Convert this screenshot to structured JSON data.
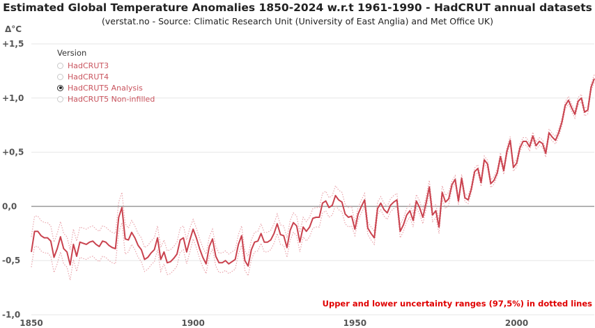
{
  "chart_data": {
    "type": "line",
    "title": "Estimated Global Temperature Anomalies 1850-2024 w.r.t 1961-1990 - HadCRUT annual datasets",
    "subtitle": "(verstat.no - Source: Climatic Research Unit (University of East Anglia) and Met Office UK)",
    "ylabel": "Δ°C",
    "xlabel": "",
    "xlim": [
      1850,
      2024
    ],
    "ylim": [
      -1.0,
      1.5
    ],
    "x_ticks": [
      {
        "value": 1850,
        "label": "1850"
      },
      {
        "value": 1900,
        "label": "1900"
      },
      {
        "value": 1950,
        "label": "1950"
      },
      {
        "value": 2000,
        "label": "2000"
      }
    ],
    "y_ticks": [
      {
        "value": 1.5,
        "label": "+1,5"
      },
      {
        "value": 1.0,
        "label": "+1,0"
      },
      {
        "value": 0.5,
        "label": "+0,5"
      },
      {
        "value": 0.0,
        "label": "0,0"
      },
      {
        "value": -0.5,
        "label": "-0,5"
      },
      {
        "value": -1.0,
        "label": "-1,0"
      }
    ],
    "grid": true,
    "line_color": "#c9424e",
    "band_color": "#e9a5ac",
    "series": [
      {
        "name": "HadCRUT5 Analysis",
        "x": [
          1850,
          1851,
          1852,
          1853,
          1854,
          1855,
          1856,
          1857,
          1858,
          1859,
          1860,
          1861,
          1862,
          1863,
          1864,
          1865,
          1866,
          1867,
          1868,
          1869,
          1870,
          1871,
          1872,
          1873,
          1874,
          1875,
          1876,
          1877,
          1878,
          1879,
          1880,
          1881,
          1882,
          1883,
          1884,
          1885,
          1886,
          1887,
          1888,
          1889,
          1890,
          1891,
          1892,
          1893,
          1894,
          1895,
          1896,
          1897,
          1898,
          1899,
          1900,
          1901,
          1902,
          1903,
          1904,
          1905,
          1906,
          1907,
          1908,
          1909,
          1910,
          1911,
          1912,
          1913,
          1914,
          1915,
          1916,
          1917,
          1918,
          1919,
          1920,
          1921,
          1922,
          1923,
          1924,
          1925,
          1926,
          1927,
          1928,
          1929,
          1930,
          1931,
          1932,
          1933,
          1934,
          1935,
          1936,
          1937,
          1938,
          1939,
          1940,
          1941,
          1942,
          1943,
          1944,
          1945,
          1946,
          1947,
          1948,
          1949,
          1950,
          1951,
          1952,
          1953,
          1954,
          1955,
          1956,
          1957,
          1958,
          1959,
          1960,
          1961,
          1962,
          1963,
          1964,
          1965,
          1966,
          1967,
          1968,
          1969,
          1970,
          1971,
          1972,
          1973,
          1974,
          1975,
          1976,
          1977,
          1978,
          1979,
          1980,
          1981,
          1982,
          1983,
          1984,
          1985,
          1986,
          1987,
          1988,
          1989,
          1990,
          1991,
          1992,
          1993,
          1994,
          1995,
          1996,
          1997,
          1998,
          1999,
          2000,
          2001,
          2002,
          2003,
          2004,
          2005,
          2006,
          2007,
          2008,
          2009,
          2010,
          2011,
          2012,
          2013,
          2014,
          2015,
          2016,
          2017,
          2018,
          2019,
          2020,
          2021,
          2022,
          2023,
          2024
        ],
        "values": [
          -0.42,
          -0.23,
          -0.23,
          -0.27,
          -0.29,
          -0.29,
          -0.32,
          -0.47,
          -0.39,
          -0.28,
          -0.39,
          -0.42,
          -0.54,
          -0.35,
          -0.46,
          -0.33,
          -0.34,
          -0.35,
          -0.33,
          -0.32,
          -0.35,
          -0.37,
          -0.32,
          -0.33,
          -0.36,
          -0.38,
          -0.39,
          -0.1,
          -0.01,
          -0.3,
          -0.31,
          -0.24,
          -0.29,
          -0.36,
          -0.4,
          -0.49,
          -0.47,
          -0.43,
          -0.4,
          -0.29,
          -0.49,
          -0.42,
          -0.52,
          -0.51,
          -0.48,
          -0.44,
          -0.31,
          -0.29,
          -0.42,
          -0.31,
          -0.21,
          -0.29,
          -0.39,
          -0.47,
          -0.53,
          -0.37,
          -0.3,
          -0.46,
          -0.52,
          -0.52,
          -0.5,
          -0.53,
          -0.51,
          -0.49,
          -0.35,
          -0.27,
          -0.5,
          -0.55,
          -0.4,
          -0.33,
          -0.32,
          -0.25,
          -0.33,
          -0.33,
          -0.31,
          -0.25,
          -0.16,
          -0.26,
          -0.27,
          -0.38,
          -0.22,
          -0.15,
          -0.18,
          -0.33,
          -0.19,
          -0.23,
          -0.19,
          -0.11,
          -0.1,
          -0.1,
          0.03,
          0.05,
          -0.01,
          0.01,
          0.1,
          0.06,
          0.04,
          -0.07,
          -0.1,
          -0.09,
          -0.21,
          -0.07,
          0.0,
          0.06,
          -0.2,
          -0.25,
          -0.29,
          -0.02,
          0.03,
          -0.03,
          -0.06,
          0.01,
          0.04,
          0.06,
          -0.23,
          -0.17,
          -0.08,
          -0.04,
          -0.13,
          0.05,
          -0.01,
          -0.1,
          0.03,
          0.18,
          -0.08,
          -0.04,
          -0.19,
          0.13,
          0.04,
          0.07,
          0.2,
          0.25,
          0.05,
          0.26,
          0.08,
          0.06,
          0.16,
          0.32,
          0.35,
          0.22,
          0.43,
          0.39,
          0.21,
          0.24,
          0.31,
          0.46,
          0.33,
          0.51,
          0.61,
          0.36,
          0.4,
          0.54,
          0.6,
          0.6,
          0.55,
          0.65,
          0.56,
          0.6,
          0.58,
          0.49,
          0.68,
          0.64,
          0.61,
          0.68,
          0.78,
          0.93,
          0.98,
          0.91,
          0.85,
          0.97,
          1.0,
          0.87,
          0.89,
          1.1,
          1.18
        ]
      }
    ]
  },
  "legend": {
    "title": "Version",
    "items": [
      {
        "label": "HadCRUT3",
        "selected": false
      },
      {
        "label": "HadCRUT4",
        "selected": false
      },
      {
        "label": "HadCRUT5 Analysis",
        "selected": true
      },
      {
        "label": "HadCRUT5 Non-infilled",
        "selected": false
      }
    ]
  },
  "annotation": "Upper and lower uncertainty ranges (97,5%) in dotted lines"
}
